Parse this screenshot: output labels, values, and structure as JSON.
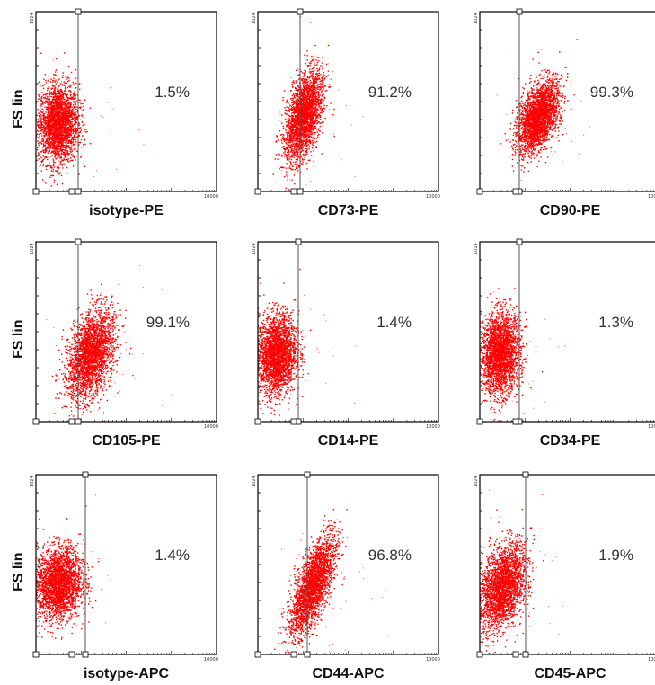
{
  "figure": {
    "ylabel": "FS lin",
    "ymax_label": "1024",
    "xmax_label": "10000"
  },
  "chart_data": [
    {
      "type": "scatter",
      "xlabel": "isotype-PE",
      "ylabel": "FS lin",
      "annotation": "1.5%",
      "ylim": [
        0,
        1024
      ],
      "xscale": "log",
      "xlim": [
        1,
        10000
      ],
      "population": {
        "center_x": 0.12,
        "center_y": 0.38,
        "spread_x": 0.055,
        "spread_y": 0.11,
        "tilt": 0.1
      },
      "points_outside_marker_percent": 1.5
    },
    {
      "type": "scatter",
      "xlabel": "CD73-PE",
      "ylabel": "FS lin",
      "annotation": "91.2%",
      "ylim": [
        0,
        1024
      ],
      "xscale": "log",
      "xlim": [
        1,
        10000
      ],
      "population": {
        "center_x": 0.25,
        "center_y": 0.42,
        "spread_x": 0.045,
        "spread_y": 0.12,
        "tilt": 0.6
      },
      "points_outside_marker_percent": 91.2
    },
    {
      "type": "scatter",
      "xlabel": "CD90-PE",
      "ylabel": "FS lin",
      "annotation": "99.3%",
      "ylim": [
        0,
        1024
      ],
      "xscale": "log",
      "xlim": [
        1,
        10000
      ],
      "population": {
        "center_x": 0.32,
        "center_y": 0.42,
        "spread_x": 0.05,
        "spread_y": 0.1,
        "tilt": 0.8
      },
      "points_outside_marker_percent": 99.3
    },
    {
      "type": "scatter",
      "xlabel": "CD105-PE",
      "ylabel": "FS lin",
      "annotation": "99.1%",
      "ylim": [
        0,
        1024
      ],
      "xscale": "log",
      "xlim": [
        1,
        10000
      ],
      "population": {
        "center_x": 0.3,
        "center_y": 0.37,
        "spread_x": 0.06,
        "spread_y": 0.12,
        "tilt": 0.6
      },
      "points_outside_marker_percent": 99.1
    },
    {
      "type": "scatter",
      "xlabel": "CD14-PE",
      "ylabel": "FS lin",
      "annotation": "1.4%",
      "ylim": [
        0,
        1024
      ],
      "xscale": "log",
      "xlim": [
        1,
        10000
      ],
      "population": {
        "center_x": 0.1,
        "center_y": 0.38,
        "spread_x": 0.055,
        "spread_y": 0.11,
        "tilt": 0.15
      },
      "points_outside_marker_percent": 1.4
    },
    {
      "type": "scatter",
      "xlabel": "CD34-PE",
      "ylabel": "FS lin",
      "annotation": "1.3%",
      "ylim": [
        0,
        1024
      ],
      "xscale": "log",
      "xlim": [
        1,
        10000
      ],
      "population": {
        "center_x": 0.11,
        "center_y": 0.38,
        "spread_x": 0.055,
        "spread_y": 0.11,
        "tilt": 0.1
      },
      "points_outside_marker_percent": 1.3
    },
    {
      "type": "scatter",
      "xlabel": "isotype-APC",
      "ylabel": "FS lin",
      "annotation": "1.4%",
      "ylim": [
        0,
        1024
      ],
      "xscale": "log",
      "xlim": [
        1,
        10000
      ],
      "population": {
        "center_x": 0.12,
        "center_y": 0.4,
        "spread_x": 0.065,
        "spread_y": 0.1,
        "tilt": 0.2
      },
      "points_outside_marker_percent": 1.4
    },
    {
      "type": "scatter",
      "xlabel": "CD44-APC",
      "ylabel": "FS lin",
      "annotation": "96.8%",
      "ylim": [
        0,
        1024
      ],
      "xscale": "log",
      "xlim": [
        1,
        10000
      ],
      "population": {
        "center_x": 0.3,
        "center_y": 0.38,
        "spread_x": 0.045,
        "spread_y": 0.13,
        "tilt": 0.9
      },
      "points_outside_marker_percent": 96.8
    },
    {
      "type": "scatter",
      "xlabel": "CD45-APC",
      "ylabel": "FS lin",
      "annotation": "1.9%",
      "ylim": [
        0,
        1024
      ],
      "xscale": "log",
      "xlim": [
        1,
        10000
      ],
      "population": {
        "center_x": 0.12,
        "center_y": 0.38,
        "spread_x": 0.06,
        "spread_y": 0.12,
        "tilt": 0.6
      },
      "points_outside_marker_percent": 1.9
    }
  ],
  "colors": {
    "dots": "#ff0000",
    "frame": "#000000",
    "marker_line": "#555555"
  }
}
